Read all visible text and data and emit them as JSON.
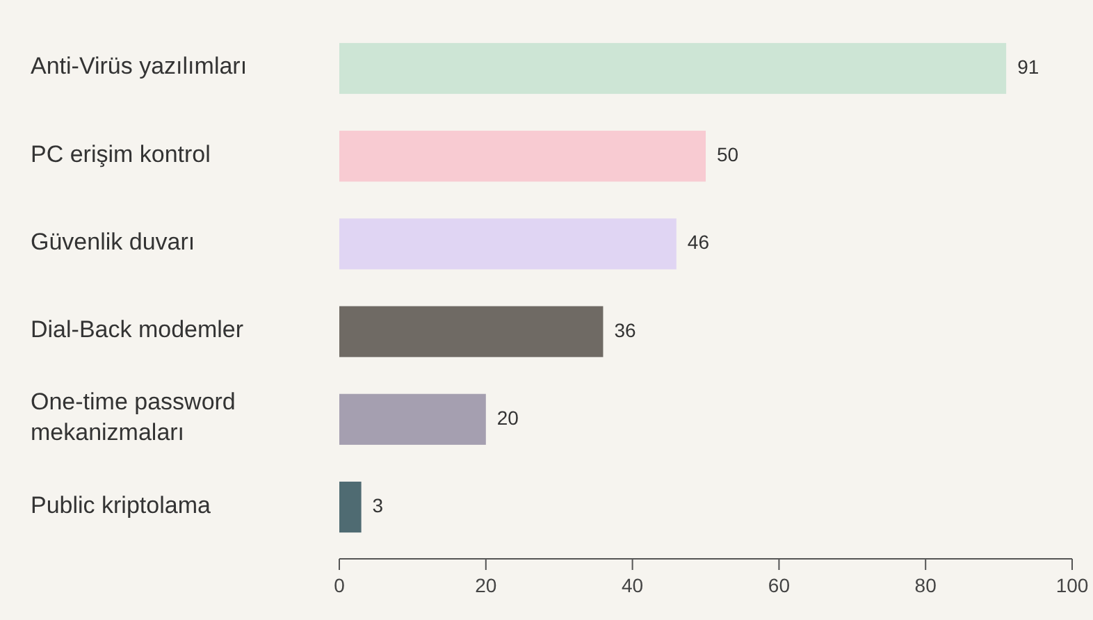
{
  "chart_data": {
    "type": "bar",
    "orientation": "horizontal",
    "categories": [
      "Anti-Virüs yazılımları",
      "PC erişim kontrol",
      "Güvenlik duvarı",
      "Dial-Back modemler",
      "One-time password mekanizmaları",
      "Public kriptolama"
    ],
    "values": [
      91,
      50,
      46,
      36,
      20,
      3
    ],
    "colors": [
      "#cde5d5",
      "#f8cbd2",
      "#e0d5f3",
      "#6f6a64",
      "#a59fb0",
      "#4f6b72"
    ],
    "xlim": [
      0,
      100
    ],
    "xticks": [
      0,
      20,
      40,
      60,
      80,
      100
    ],
    "data_labels": true
  }
}
